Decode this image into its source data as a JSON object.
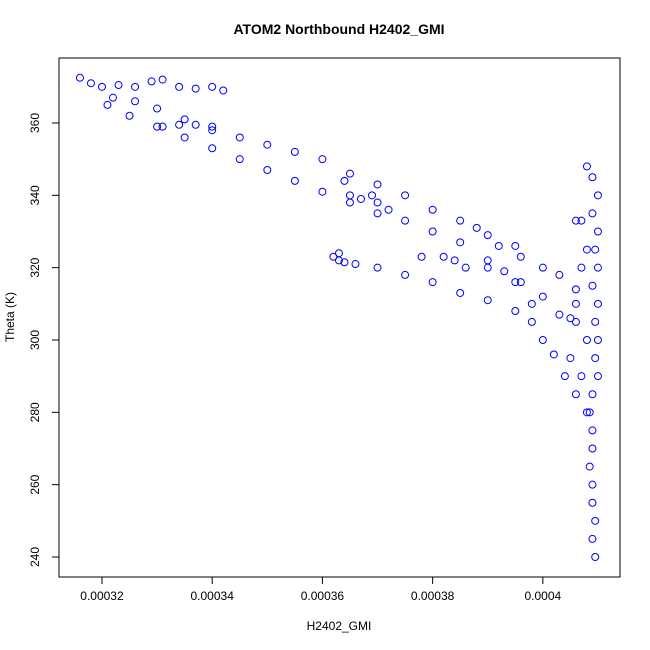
{
  "chart_data": {
    "type": "scatter",
    "title": "ATOM2 Northbound H2402_GMI",
    "x_label": "H2402_GMI",
    "y_label": "Theta (K)",
    "color": "#0000ff",
    "marker": "open-circle",
    "xlim": [
      0.0003122,
      0.000414
    ],
    "ylim": [
      234.47,
      377.97
    ],
    "xticks": [
      0.00032,
      0.00034,
      0.00036,
      0.00038,
      0.0004
    ],
    "yticks": [
      240,
      260,
      280,
      300,
      320,
      340,
      360
    ],
    "x": [
      0.000316,
      0.000318,
      0.00032,
      0.000323,
      0.000326,
      0.000329,
      0.000331,
      0.000334,
      0.000337,
      0.00034,
      0.000342,
      0.000322,
      0.000326,
      0.00033,
      0.000335,
      0.00034,
      0.000345,
      0.00035,
      0.000355,
      0.00036,
      0.000365,
      0.00037,
      0.000375,
      0.00038,
      0.000385,
      0.00039,
      0.000395,
      0.000321,
      0.000325,
      0.00033,
      0.000335,
      0.00034,
      0.000345,
      0.00035,
      0.000355,
      0.00036,
      0.000365,
      0.00037,
      0.000375,
      0.00038,
      0.000385,
      0.00039,
      0.000395,
      0.000398,
      0.000331,
      0.000334,
      0.000337,
      0.00034,
      0.000364,
      0.000365,
      0.000367,
      0.000369,
      0.00037,
      0.000372,
      0.000362,
      0.000363,
      0.000364,
      0.000363,
      0.000366,
      0.00037,
      0.000375,
      0.00038,
      0.000385,
      0.00039,
      0.000395,
      0.000398,
      0.0004,
      0.000402,
      0.000404,
      0.000406,
      0.000378,
      0.000382,
      0.000384,
      0.000386,
      0.00039,
      0.000393,
      0.000396,
      0.0004,
      0.000403,
      0.000406,
      0.000408,
      0.000388,
      0.000392,
      0.000396,
      0.0004,
      0.000403,
      0.000406,
      0.0004095,
      0.000409,
      0.0004095,
      0.000409,
      0.000409,
      0.0004085,
      0.000409,
      0.000409,
      0.0004085,
      0.000409,
      0.00041,
      0.0004095,
      0.00041,
      0.0004095,
      0.00041,
      0.000409,
      0.00041,
      0.0004095,
      0.00041,
      0.000409,
      0.00041,
      0.000409,
      0.000408,
      0.000407,
      0.000406,
      0.000408,
      0.000407,
      0.000406,
      0.000405,
      0.000408,
      0.000407,
      0.000405
    ],
    "values": [
      372.5,
      371,
      370,
      370.5,
      370,
      371.5,
      372,
      370,
      369.5,
      370,
      369,
      367,
      366,
      364,
      361,
      358,
      356,
      354,
      352,
      350,
      346,
      343,
      340,
      336,
      333,
      329,
      326,
      365,
      362,
      359,
      356,
      353,
      350,
      347,
      344,
      341,
      338,
      335,
      333,
      330,
      327,
      322,
      316,
      310,
      359,
      359.5,
      359.5,
      359,
      344,
      340,
      339,
      340,
      338,
      336,
      323,
      322,
      321.5,
      324,
      321,
      320,
      318,
      316,
      313,
      311,
      308,
      305,
      300,
      296,
      290,
      285,
      323,
      323,
      322,
      320,
      320,
      319,
      316,
      312,
      307,
      305,
      300,
      331,
      326,
      323,
      320,
      318,
      314,
      240,
      245,
      250,
      255,
      260,
      265,
      270,
      275,
      280,
      285,
      290,
      295,
      300,
      305,
      310,
      315,
      320,
      325,
      330,
      335,
      340,
      345,
      348,
      333,
      333,
      325,
      320,
      310,
      306,
      280,
      290,
      295
    ]
  }
}
